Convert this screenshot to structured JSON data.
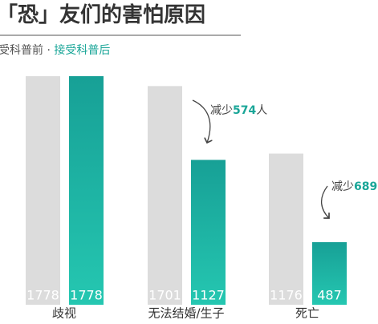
{
  "chart_data": {
    "type": "bar",
    "title": "「恐」友们的害怕原因",
    "categories": [
      "歧视",
      "无法结婚/生子",
      "死亡"
    ],
    "series": [
      {
        "name": "受科普前",
        "color": "#dcdcdc",
        "values": [
          1778,
          1701,
          1176
        ]
      },
      {
        "name": "接受科普后",
        "color": "#1fb3a3",
        "values": [
          1778,
          1127,
          487
        ]
      }
    ],
    "annotations": [
      {
        "prefix": "减少",
        "value": 574,
        "suffix": "人"
      },
      {
        "prefix": "减少",
        "value": 689
      }
    ]
  }
}
